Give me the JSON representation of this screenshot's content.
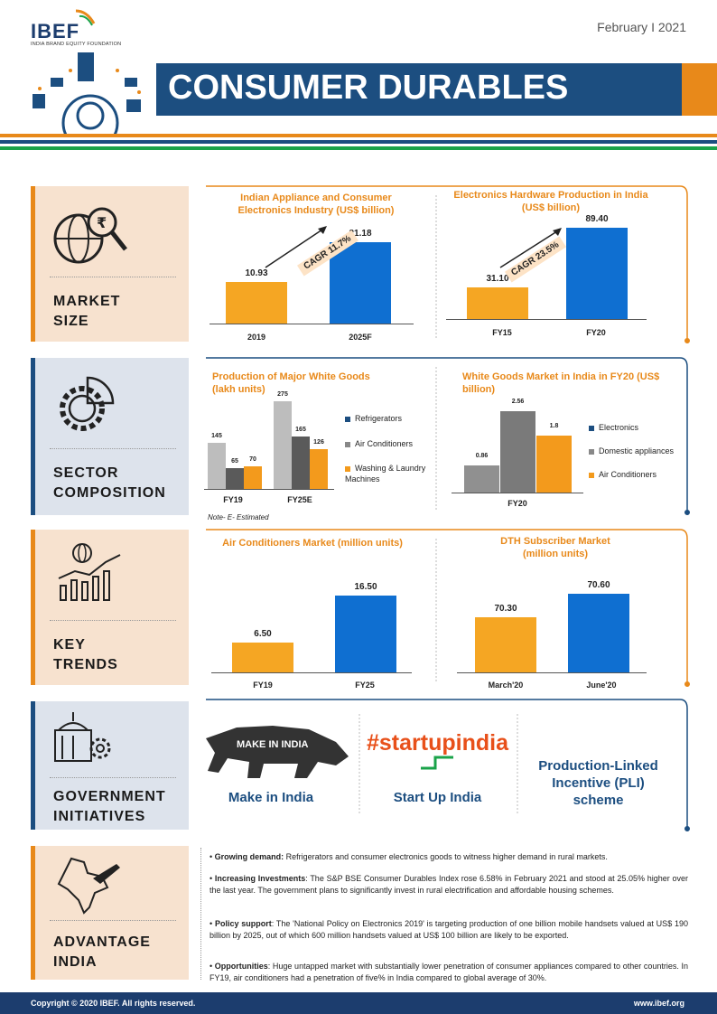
{
  "header": {
    "logo": "IBEF",
    "logo_sub": "INDIA BRAND EQUITY FOUNDATION",
    "date": "February I 2021",
    "title": "CONSUMER DURABLES"
  },
  "sections": {
    "market_size": [
      "MARKET",
      "SIZE"
    ],
    "sector_composition": [
      "SECTOR",
      "COMPOSITION"
    ],
    "key_trends": [
      "KEY",
      "TRENDS"
    ],
    "government_initiatives": [
      "GOVERNMENT",
      "INITIATIVES"
    ],
    "advantage_india": [
      "ADVANTAGE",
      "INDIA"
    ]
  },
  "chart_data": [
    {
      "type": "bar",
      "title": "Indian Appliance and Consumer Electronics Industry (US$ billion)",
      "categories": [
        "2019",
        "2025F"
      ],
      "values": [
        10.93,
        21.18
      ],
      "value_labels": [
        "10.93",
        "21.18"
      ],
      "annotation": "CAGR 11.7%"
    },
    {
      "type": "bar",
      "title": "Electronics Hardware Production in India (US$ billion)",
      "categories": [
        "FY15",
        "FY20"
      ],
      "values": [
        31.1,
        89.4
      ],
      "value_labels": [
        "31.10",
        "89.40"
      ],
      "annotation": "CAGR 23.5%"
    },
    {
      "type": "bar",
      "title": "Production of Major White Goods (lakh units)",
      "categories": [
        "FY19",
        "FY25E"
      ],
      "series": [
        {
          "name": "Refrigerators",
          "values": [
            145,
            275
          ]
        },
        {
          "name": "Air Conditioners",
          "values": [
            65,
            165
          ]
        },
        {
          "name": "Washing & Laundry Machines",
          "values": [
            70,
            126
          ]
        }
      ],
      "note": "Note- E- Estimated"
    },
    {
      "type": "bar",
      "title": "White Goods Market in India in FY20 (US$ billion)",
      "categories": [
        "FY20"
      ],
      "series": [
        {
          "name": "Electronics",
          "values": [
            0.86
          ]
        },
        {
          "name": "Domestic appliances",
          "values": [
            2.56
          ]
        },
        {
          "name": "Air Conditioners",
          "values": [
            1.8
          ]
        }
      ],
      "value_labels": [
        "0.86",
        "2.56",
        "1.8"
      ]
    },
    {
      "type": "bar",
      "title": "Air Conditioners Market (million units)",
      "categories": [
        "FY19",
        "FY25"
      ],
      "values": [
        6.5,
        16.5
      ],
      "value_labels": [
        "6.50",
        "16.50"
      ]
    },
    {
      "type": "bar",
      "title": "DTH Subscriber Market (million units)",
      "categories": [
        "March'20",
        "June'20"
      ],
      "values": [
        70.3,
        70.6
      ],
      "value_labels": [
        "70.30",
        "70.60"
      ]
    }
  ],
  "initiatives": [
    "Make in India",
    "Start Up India",
    "Production-Linked Incentive (PLI) scheme"
  ],
  "initiative_logos": {
    "make_in_india": "MAKE IN INDIA",
    "startup": "#startupindia"
  },
  "advantages": [
    {
      "head": "Growing demand:",
      "text": " Refrigerators and consumer electronics goods to witness higher demand in rural markets."
    },
    {
      "head": "Increasing Investments",
      "text": ": The S&P BSE Consumer Durables Index rose 6.58% in February 2021 and stood at 25.05% higher over the last year. The government plans to significantly invest in rural electrification and affordable housing schemes."
    },
    {
      "head": "Policy support",
      "text": ": The 'National Policy on Electronics 2019' is targeting production of one billion mobile handsets valued at US$ 190 billion by 2025, out of which 600 million handsets valued at US$ 100 billion are likely to be exported."
    },
    {
      "head": "Opportunities",
      "text": ": Huge untapped market with substantially lower penetration of consumer appliances compared to other countries. In FY19, air conditioners had a penetration of five% in India compared to global average of 30%."
    }
  ],
  "footer": {
    "copyright": "Copyright © 2020 IBEF. All rights reserved.",
    "site": "www.ibef.org"
  },
  "colors": {
    "navy": "#1c4e80",
    "orange": "#f39a1c",
    "blue": "#0f6fd1",
    "gray": "#888888",
    "green": "#1aa34a"
  }
}
